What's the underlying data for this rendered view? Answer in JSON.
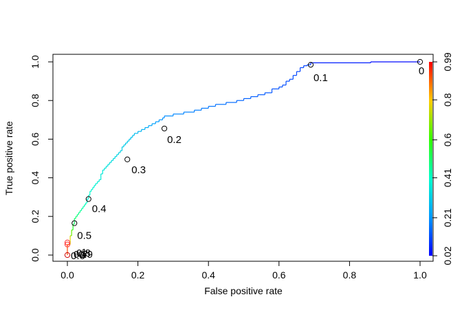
{
  "chart_data": {
    "type": "line",
    "title": "",
    "xlabel": "False positive rate",
    "ylabel": "True positive rate",
    "xlim": [
      0,
      1
    ],
    "ylim": [
      0,
      1
    ],
    "x_ticks": [
      "0.0",
      "0.2",
      "0.4",
      "0.6",
      "0.8",
      "1.0"
    ],
    "y_ticks": [
      "0.0",
      "0.2",
      "0.4",
      "0.6",
      "0.8",
      "1.0"
    ],
    "grid": false,
    "series": [
      {
        "x": [
          0.0,
          0.0,
          0.008,
          0.008,
          0.012,
          0.012,
          0.016,
          0.016,
          0.02,
          0.02,
          0.024,
          0.024,
          0.028,
          0.028,
          0.032,
          0.032,
          0.036,
          0.036,
          0.04,
          0.04,
          0.044,
          0.044,
          0.048,
          0.048,
          0.052,
          0.052,
          0.056,
          0.056,
          0.06,
          0.06,
          0.064,
          0.064,
          0.068,
          0.068,
          0.072,
          0.072,
          0.076,
          0.076,
          0.08,
          0.08,
          0.085,
          0.085,
          0.09,
          0.09,
          0.095,
          0.095,
          0.1,
          0.1,
          0.105,
          0.105,
          0.11,
          0.11,
          0.115,
          0.115,
          0.12,
          0.12,
          0.125,
          0.125,
          0.13,
          0.13,
          0.135,
          0.135,
          0.14,
          0.14,
          0.145,
          0.145,
          0.15,
          0.15,
          0.155,
          0.155,
          0.16,
          0.16,
          0.165,
          0.165,
          0.17,
          0.17,
          0.175,
          0.175,
          0.18,
          0.18,
          0.185,
          0.185,
          0.19,
          0.19,
          0.2,
          0.2,
          0.21,
          0.21,
          0.22,
          0.22,
          0.23,
          0.23,
          0.24,
          0.24,
          0.25,
          0.25,
          0.26,
          0.26,
          0.27,
          0.27,
          0.275,
          0.275,
          0.3,
          0.3,
          0.33,
          0.33,
          0.36,
          0.36,
          0.38,
          0.38,
          0.4,
          0.4,
          0.42,
          0.42,
          0.45,
          0.45,
          0.48,
          0.48,
          0.5,
          0.5,
          0.52,
          0.52,
          0.54,
          0.54,
          0.56,
          0.56,
          0.58,
          0.58,
          0.6,
          0.6,
          0.61,
          0.61,
          0.62,
          0.62,
          0.63,
          0.63,
          0.64,
          0.64,
          0.65,
          0.65,
          0.66,
          0.66,
          0.67,
          0.67,
          0.68,
          0.68,
          0.69,
          0.69,
          0.86,
          0.86,
          1.0
        ],
        "y": [
          0.0,
          0.055,
          0.055,
          0.1,
          0.1,
          0.13,
          0.13,
          0.16,
          0.16,
          0.19,
          0.19,
          0.2,
          0.2,
          0.21,
          0.21,
          0.22,
          0.22,
          0.23,
          0.23,
          0.24,
          0.24,
          0.25,
          0.25,
          0.26,
          0.26,
          0.27,
          0.27,
          0.29,
          0.29,
          0.31,
          0.31,
          0.33,
          0.33,
          0.34,
          0.34,
          0.35,
          0.35,
          0.36,
          0.36,
          0.37,
          0.37,
          0.38,
          0.38,
          0.39,
          0.39,
          0.42,
          0.42,
          0.44,
          0.44,
          0.45,
          0.45,
          0.46,
          0.46,
          0.47,
          0.47,
          0.48,
          0.48,
          0.49,
          0.49,
          0.5,
          0.5,
          0.51,
          0.51,
          0.52,
          0.52,
          0.53,
          0.53,
          0.54,
          0.54,
          0.56,
          0.56,
          0.57,
          0.57,
          0.58,
          0.58,
          0.59,
          0.59,
          0.6,
          0.6,
          0.61,
          0.61,
          0.62,
          0.62,
          0.63,
          0.63,
          0.64,
          0.64,
          0.65,
          0.65,
          0.66,
          0.66,
          0.67,
          0.67,
          0.68,
          0.68,
          0.69,
          0.69,
          0.7,
          0.7,
          0.71,
          0.71,
          0.72,
          0.72,
          0.73,
          0.73,
          0.74,
          0.74,
          0.75,
          0.75,
          0.76,
          0.76,
          0.77,
          0.77,
          0.78,
          0.78,
          0.79,
          0.79,
          0.8,
          0.8,
          0.81,
          0.81,
          0.82,
          0.82,
          0.83,
          0.83,
          0.84,
          0.84,
          0.86,
          0.86,
          0.87,
          0.87,
          0.88,
          0.88,
          0.9,
          0.9,
          0.91,
          0.91,
          0.93,
          0.93,
          0.95,
          0.95,
          0.97,
          0.97,
          0.98,
          0.98,
          0.985,
          0.985,
          0.995,
          0.995,
          1.0,
          1.0
        ]
      }
    ],
    "cutoff_points": [
      {
        "label": "0",
        "x": 1.0,
        "y": 1.0
      },
      {
        "label": "0.1",
        "x": 0.69,
        "y": 0.985
      },
      {
        "label": "0.2",
        "x": 0.275,
        "y": 0.655
      },
      {
        "label": "0.3",
        "x": 0.17,
        "y": 0.495
      },
      {
        "label": "0.4",
        "x": 0.06,
        "y": 0.29
      },
      {
        "label": "0.5",
        "x": 0.02,
        "y": 0.165
      },
      {
        "label": "0.6",
        "x": 0.0,
        "y": 0.065
      },
      {
        "label": "0.7",
        "x": 0.0,
        "y": 0.055
      },
      {
        "label": "0.8",
        "x": 0.0,
        "y": 0.0
      },
      {
        "label": "0.9",
        "x": 0.045,
        "y": 0.0
      },
      {
        "label": "1",
        "x": 0.045,
        "y": 0.0
      }
    ],
    "colorbar": {
      "labels": [
        "0.02",
        "0.21",
        "0.41",
        "0.6",
        "0.8",
        "0.99"
      ],
      "range": [
        0.02,
        0.99
      ],
      "colormap": "rainbow"
    }
  }
}
